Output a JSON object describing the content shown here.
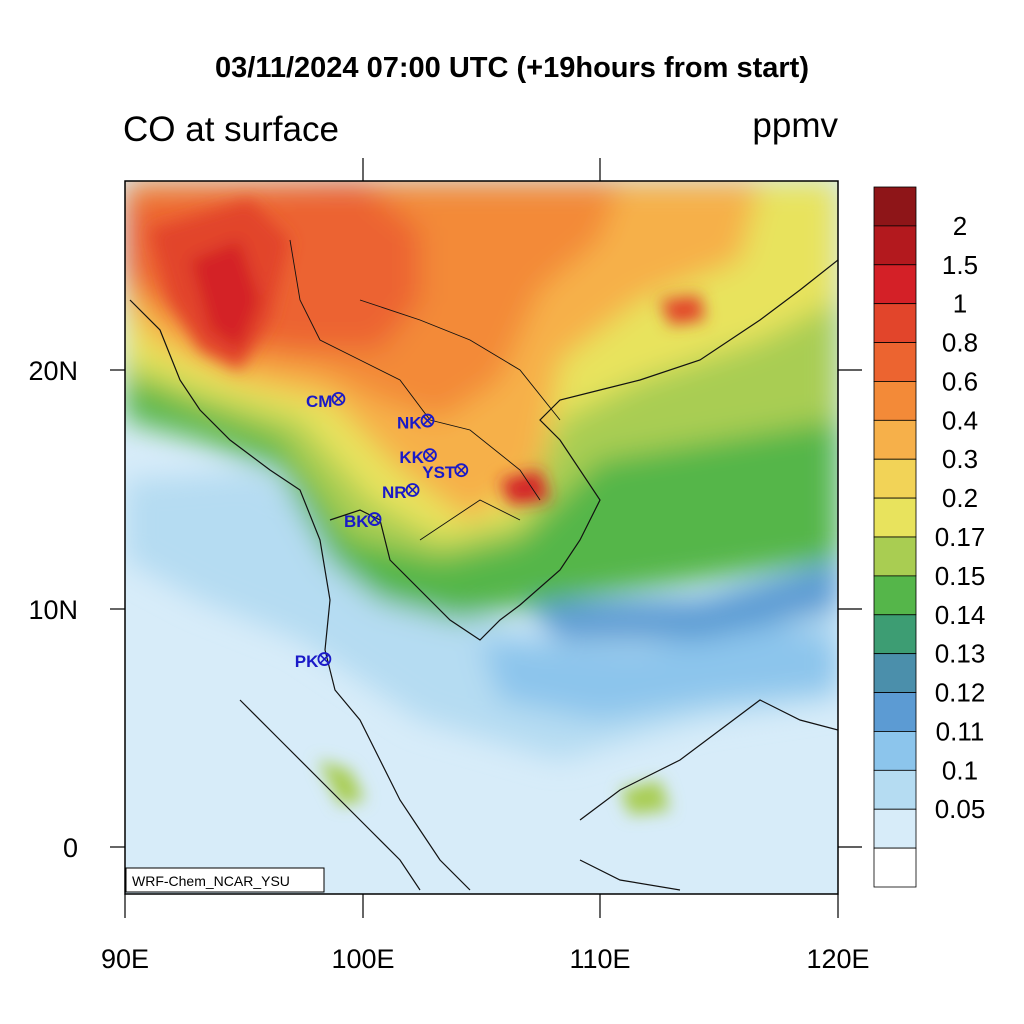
{
  "title": "03/11/2024 07:00 UTC (+19hours from start)",
  "left_title": "CO at surface",
  "right_title": "ppmv",
  "credit": "WRF-Chem_NCAR_YSU",
  "lat_labels": [
    "20N",
    "10N",
    "0"
  ],
  "lon_labels": [
    "90E",
    "100E",
    "110E",
    "120E"
  ],
  "colorbar": {
    "labels": [
      "2",
      "1.5",
      "1",
      "0.8",
      "0.6",
      "0.4",
      "0.3",
      "0.2",
      "0.17",
      "0.15",
      "0.14",
      "0.13",
      "0.12",
      "0.11",
      "0.1",
      "0.05"
    ],
    "colors": [
      "#8e1518",
      "#b3191e",
      "#d42027",
      "#e2452b",
      "#ec6430",
      "#f38a38",
      "#f6b04a",
      "#f2d357",
      "#e8e35d",
      "#a9cd52",
      "#55b64a",
      "#3d9d73",
      "#4b8fab",
      "#5c9bd3",
      "#8cc5ec",
      "#b5dcf2",
      "#d7ecf9",
      "#ffffff"
    ]
  },
  "stations": [
    {
      "code": "CM",
      "lon": 98.98,
      "lat": 18.79
    },
    {
      "code": "NK",
      "lon": 102.73,
      "lat": 17.88
    },
    {
      "code": "KK",
      "lon": 102.83,
      "lat": 16.43
    },
    {
      "code": "YST",
      "lon": 104.15,
      "lat": 15.8
    },
    {
      "code": "NR",
      "lon": 102.1,
      "lat": 14.97
    },
    {
      "code": "BK",
      "lon": 100.5,
      "lat": 13.75
    },
    {
      "code": "PK",
      "lon": 98.39,
      "lat": 7.88
    }
  ],
  "colors": {
    "station": "#1a1ac8"
  }
}
